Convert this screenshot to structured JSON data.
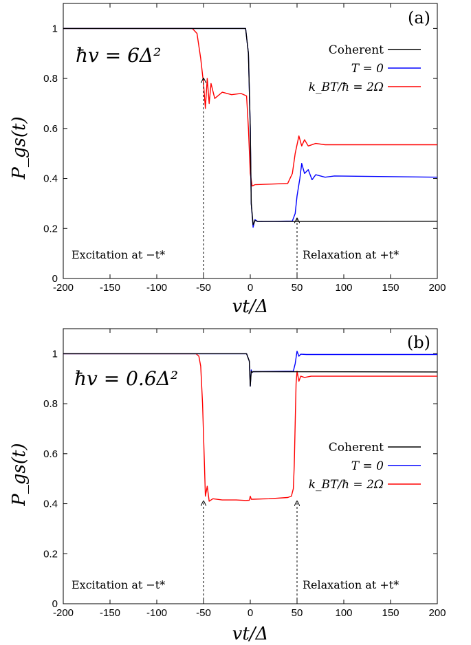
{
  "chart_data": [
    {
      "type": "line",
      "panel_label": "(a)",
      "parameter": "ħv = 6Δ²",
      "xlabel": "vt/Δ",
      "ylabel": "P_gs(t)",
      "xlim": [
        -200,
        200
      ],
      "ylim": [
        0,
        1.1
      ],
      "xticks": [
        -200,
        -150,
        -100,
        -50,
        0,
        50,
        100,
        150,
        200
      ],
      "xtick_labels": [
        "-200",
        "-150",
        "-100",
        "-50",
        "0",
        "50",
        "100",
        "150",
        "200"
      ],
      "yticks": [
        0,
        0.2,
        0.4,
        0.6,
        0.8,
        1
      ],
      "ytick_labels": [
        "0",
        "0.2",
        "0.4",
        "0.6",
        "0.8",
        "1"
      ],
      "grid": false,
      "legend_position": "top-right",
      "series": [
        {
          "name": "Coherent",
          "color": "#000000",
          "x": [
            -200,
            -5,
            -2,
            0,
            1,
            3,
            5,
            8,
            200
          ],
          "y": [
            1.0,
            1.0,
            0.9,
            0.6,
            0.3,
            0.215,
            0.232,
            0.228,
            0.229
          ]
        },
        {
          "name": "T = 0",
          "color": "#0000ff",
          "x": [
            -200,
            -5,
            -2,
            0,
            1,
            3,
            5,
            8,
            45,
            48,
            50,
            53,
            55,
            58,
            62,
            66,
            70,
            80,
            90,
            200
          ],
          "y": [
            1.0,
            1.0,
            0.9,
            0.6,
            0.3,
            0.205,
            0.235,
            0.228,
            0.23,
            0.26,
            0.33,
            0.4,
            0.46,
            0.42,
            0.435,
            0.395,
            0.415,
            0.405,
            0.41,
            0.405
          ]
        },
        {
          "name": "k_BT/ħ = 2Ω",
          "color": "#ff0000",
          "x": [
            -200,
            -62,
            -57,
            -53,
            -50,
            -48,
            -46,
            -44,
            -42,
            -38,
            -30,
            -20,
            -10,
            -4,
            -2,
            0,
            2,
            5,
            40,
            45,
            48,
            52,
            55,
            58,
            62,
            70,
            80,
            200
          ],
          "y": [
            1.0,
            1.0,
            0.98,
            0.88,
            0.78,
            0.68,
            0.8,
            0.7,
            0.78,
            0.72,
            0.745,
            0.735,
            0.74,
            0.73,
            0.6,
            0.42,
            0.37,
            0.375,
            0.38,
            0.42,
            0.5,
            0.57,
            0.53,
            0.555,
            0.53,
            0.54,
            0.535,
            0.535
          ]
        }
      ],
      "annotations": [
        {
          "text": "Excitation at  −t*",
          "arrow_x": -50,
          "arrow_y": 0.8
        },
        {
          "text": "Relaxation at  +t*",
          "arrow_x": 50,
          "arrow_y": 0.24
        }
      ]
    },
    {
      "type": "line",
      "panel_label": "(b)",
      "parameter": "ħv = 0.6Δ²",
      "xlabel": "vt/Δ",
      "ylabel": "P_gs(t)",
      "xlim": [
        -200,
        200
      ],
      "ylim": [
        0,
        1.1
      ],
      "xticks": [
        -200,
        -150,
        -100,
        -50,
        0,
        50,
        100,
        150,
        200
      ],
      "xtick_labels": [
        "-200",
        "-150",
        "-100",
        "-50",
        "0",
        "50",
        "100",
        "150",
        "200"
      ],
      "yticks": [
        0,
        0.2,
        0.4,
        0.6,
        0.8,
        1
      ],
      "ytick_labels": [
        "0",
        "0.2",
        "0.4",
        "0.6",
        "0.8",
        "1"
      ],
      "grid": false,
      "legend_position": "right",
      "series": [
        {
          "name": "Coherent",
          "color": "#000000",
          "x": [
            -200,
            -4,
            -1,
            0,
            1,
            2,
            3,
            200
          ],
          "y": [
            1.0,
            1.0,
            0.97,
            0.87,
            0.93,
            0.925,
            0.928,
            0.927
          ]
        },
        {
          "name": "T = 0",
          "color": "#0000ff",
          "x": [
            -200,
            -4,
            -1,
            0,
            1,
            2,
            3,
            46,
            48,
            50,
            52,
            54,
            60,
            200
          ],
          "y": [
            1.0,
            1.0,
            0.97,
            0.87,
            0.935,
            0.925,
            0.928,
            0.93,
            0.96,
            1.01,
            0.99,
            0.998,
            0.997,
            0.997
          ]
        },
        {
          "name": "k_BT/ħ = 2Ω",
          "color": "#ff0000",
          "x": [
            -200,
            -58,
            -55,
            -53,
            -51,
            -49,
            -48,
            -46,
            -44,
            -40,
            -30,
            -15,
            -5,
            -1,
            0,
            1,
            3,
            20,
            40,
            44,
            46,
            47,
            48,
            49,
            50,
            52,
            54,
            58,
            65,
            200
          ],
          "y": [
            1.0,
            1.0,
            0.99,
            0.95,
            0.8,
            0.55,
            0.43,
            0.47,
            0.41,
            0.42,
            0.415,
            0.415,
            0.413,
            0.414,
            0.43,
            0.418,
            0.418,
            0.42,
            0.425,
            0.43,
            0.46,
            0.55,
            0.72,
            0.88,
            0.93,
            0.89,
            0.91,
            0.905,
            0.91,
            0.91
          ]
        }
      ],
      "annotations": [
        {
          "text": "Excitation at  −t*",
          "arrow_x": -50,
          "arrow_y": 0.41
        },
        {
          "text": "Relaxation at  +t*",
          "arrow_x": 50,
          "arrow_y": 0.41
        }
      ]
    }
  ]
}
